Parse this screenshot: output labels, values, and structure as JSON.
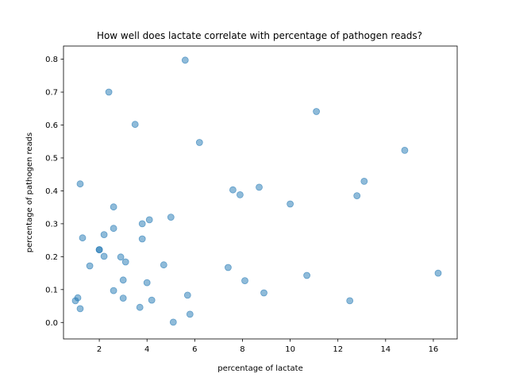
{
  "chart_data": {
    "type": "scatter",
    "title": "How well does lactate correlate with percentage of pathogen reads?",
    "xlabel": "percentage of lactate",
    "ylabel": "percentage of pathogen reads",
    "xlim": [
      0.5,
      17.0
    ],
    "ylim": [
      -0.05,
      0.84
    ],
    "xticks": [
      2,
      4,
      6,
      8,
      10,
      12,
      14,
      16
    ],
    "yticks": [
      0.0,
      0.1,
      0.2,
      0.3,
      0.4,
      0.5,
      0.6,
      0.7,
      0.8
    ],
    "grid": false,
    "marker_color": "#1f77b4",
    "marker_alpha": 0.5,
    "series": [
      {
        "points": [
          [
            5.6,
            0.797
          ],
          [
            2.4,
            0.7
          ],
          [
            11.1,
            0.641
          ],
          [
            3.5,
            0.602
          ],
          [
            6.2,
            0.547
          ],
          [
            14.8,
            0.523
          ],
          [
            13.1,
            0.429
          ],
          [
            1.2,
            0.421
          ],
          [
            8.7,
            0.411
          ],
          [
            7.6,
            0.403
          ],
          [
            7.9,
            0.388
          ],
          [
            12.8,
            0.385
          ],
          [
            10.0,
            0.36
          ],
          [
            2.6,
            0.351
          ],
          [
            5.0,
            0.32
          ],
          [
            4.1,
            0.312
          ],
          [
            3.8,
            0.3
          ],
          [
            2.6,
            0.286
          ],
          [
            2.2,
            0.267
          ],
          [
            1.3,
            0.257
          ],
          [
            3.8,
            0.254
          ],
          [
            2.0,
            0.221
          ],
          [
            2.0,
            0.221
          ],
          [
            2.2,
            0.201
          ],
          [
            2.9,
            0.199
          ],
          [
            3.1,
            0.184
          ],
          [
            4.7,
            0.175
          ],
          [
            1.6,
            0.172
          ],
          [
            7.4,
            0.167
          ],
          [
            16.2,
            0.15
          ],
          [
            10.7,
            0.143
          ],
          [
            3.0,
            0.129
          ],
          [
            8.1,
            0.127
          ],
          [
            4.0,
            0.121
          ],
          [
            2.6,
            0.097
          ],
          [
            8.9,
            0.09
          ],
          [
            5.7,
            0.083
          ],
          [
            1.1,
            0.075
          ],
          [
            3.0,
            0.074
          ],
          [
            4.2,
            0.068
          ],
          [
            1.0,
            0.066
          ],
          [
            12.5,
            0.066
          ],
          [
            3.7,
            0.046
          ],
          [
            1.2,
            0.042
          ],
          [
            5.8,
            0.025
          ],
          [
            5.1,
            0.001
          ]
        ]
      }
    ]
  }
}
